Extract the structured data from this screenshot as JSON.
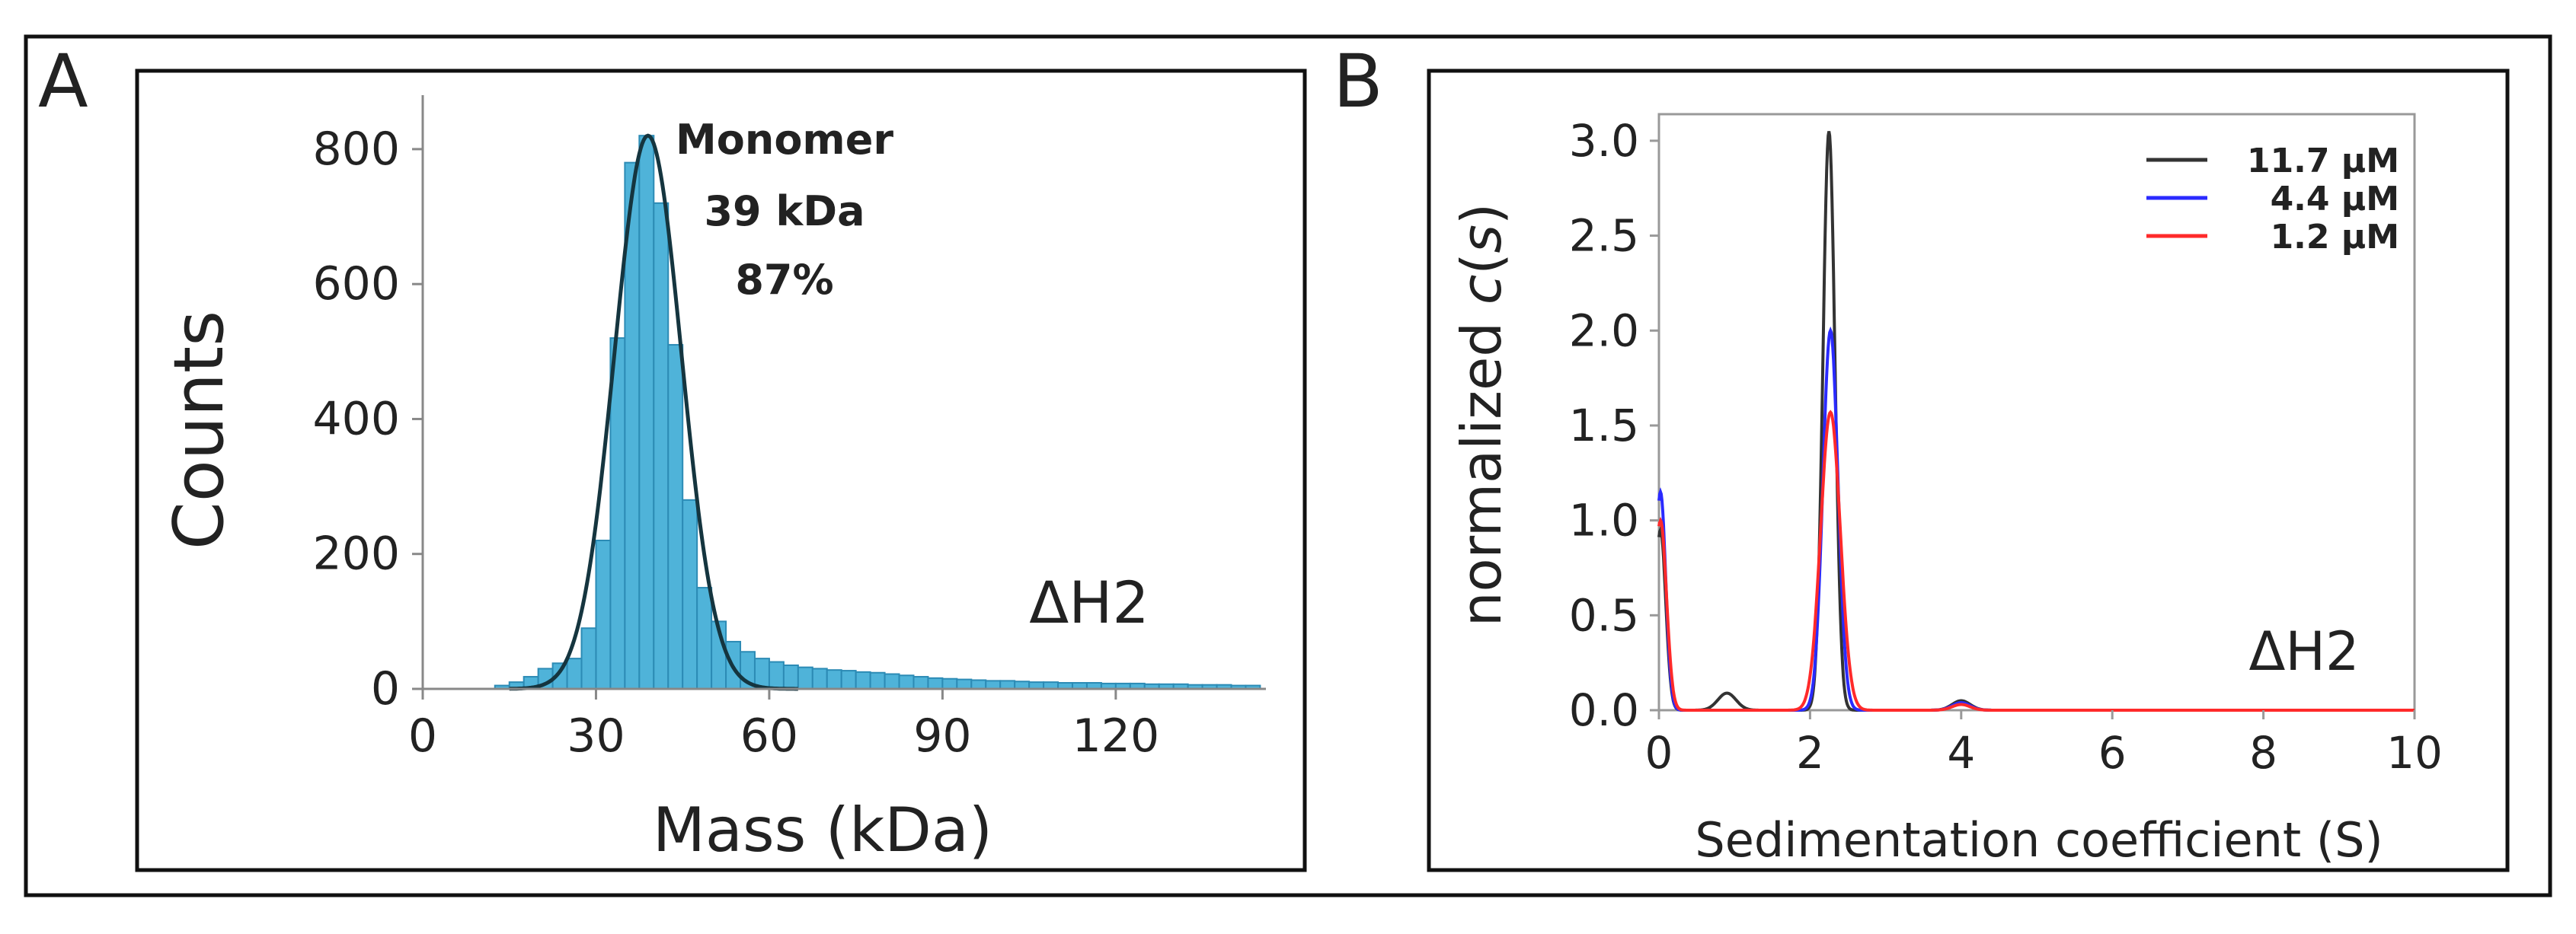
{
  "panels": [
    {
      "label": "A",
      "chart_data": {
        "type": "bar",
        "title": "",
        "xlabel": "Mass (kDa)",
        "ylabel": "Counts",
        "xlim": [
          0,
          146
        ],
        "ylim": [
          0,
          880
        ],
        "xticks": [
          0,
          30,
          60,
          90,
          120
        ],
        "yticks": [
          0,
          200,
          400,
          600,
          800
        ],
        "bin_width": 2.5,
        "bin_centers": [
          13.75,
          16.25,
          18.75,
          21.25,
          23.75,
          26.25,
          28.75,
          31.25,
          33.75,
          36.25,
          38.75,
          41.25,
          43.75,
          46.25,
          48.75,
          51.25,
          53.75,
          56.25,
          58.75,
          61.25,
          63.75,
          66.25,
          68.75,
          71.25,
          73.75,
          76.25,
          78.75,
          81.25,
          83.75,
          86.25,
          88.75,
          91.25,
          93.75,
          96.25,
          98.75,
          101.25,
          103.75,
          106.25,
          108.75,
          111.25,
          113.75,
          116.25,
          118.75,
          121.25,
          123.75,
          126.25,
          128.75,
          131.25,
          133.75,
          136.25,
          138.75,
          141.25,
          143.75
        ],
        "counts": [
          5,
          10,
          18,
          30,
          38,
          45,
          90,
          220,
          520,
          780,
          820,
          720,
          510,
          280,
          150,
          100,
          70,
          55,
          45,
          40,
          35,
          32,
          30,
          28,
          27,
          25,
          24,
          22,
          20,
          18,
          16,
          15,
          14,
          13,
          12,
          12,
          11,
          10,
          10,
          9,
          9,
          9,
          8,
          8,
          8,
          7,
          7,
          7,
          6,
          6,
          6,
          5,
          5
        ],
        "series": [
          {
            "name": "Gaussian fit",
            "mean": 39,
            "sigma": 5.8,
            "amplitude": 820,
            "color": "#15353f"
          }
        ],
        "annotations": [
          {
            "text": "Monomer",
            "role": "peak-name"
          },
          {
            "text": "39 kDa",
            "role": "peak-mass"
          },
          {
            "text": "87%",
            "role": "peak-percent"
          },
          {
            "text": "ΔH2",
            "role": "construct"
          }
        ],
        "colors": {
          "bars": "#4fb3d9",
          "bar_edge": "#2c8bb5",
          "fit": "#15353f"
        }
      }
    },
    {
      "label": "B",
      "chart_data": {
        "type": "line",
        "title": "",
        "xlabel": "Sedimentation coefficient (S)",
        "ylabel_prefix": "normalized ",
        "ylabel_italic": "c",
        "ylabel_paren_open": "(",
        "ylabel_italic2": "s",
        "ylabel_paren_close": ")",
        "xlim": [
          0,
          10
        ],
        "ylim": [
          0,
          3.0
        ],
        "xticks": [
          0,
          2,
          4,
          6,
          8,
          10
        ],
        "yticks": [
          "0.0",
          "0.5",
          "1.0",
          "1.5",
          "2.0",
          "2.5",
          "3.0"
        ],
        "legend_position": "top-right",
        "series": [
          {
            "name": "11.7 μM",
            "color": "#333333",
            "peaks": [
              {
                "s": 0.02,
                "h": 0.95,
                "w": 0.07
              },
              {
                "s": 0.9,
                "h": 0.09,
                "w": 0.12
              },
              {
                "s": 2.25,
                "h": 3.05,
                "w": 0.08
              },
              {
                "s": 4.0,
                "h": 0.05,
                "w": 0.12
              }
            ]
          },
          {
            "name": "4.4 μM",
            "color": "#2a2aff",
            "peaks": [
              {
                "s": 0.02,
                "h": 1.15,
                "w": 0.07
              },
              {
                "s": 2.27,
                "h": 2.0,
                "w": 0.1
              },
              {
                "s": 4.0,
                "h": 0.04,
                "w": 0.12
              }
            ]
          },
          {
            "name": "1.2 μM",
            "color": "#ff2a2a",
            "peaks": [
              {
                "s": 0.02,
                "h": 1.0,
                "w": 0.08
              },
              {
                "s": 2.27,
                "h": 1.57,
                "w": 0.13
              },
              {
                "s": 4.0,
                "h": 0.03,
                "w": 0.12
              }
            ]
          }
        ],
        "annotations": [
          {
            "text": "ΔH2",
            "role": "construct"
          }
        ]
      }
    }
  ]
}
